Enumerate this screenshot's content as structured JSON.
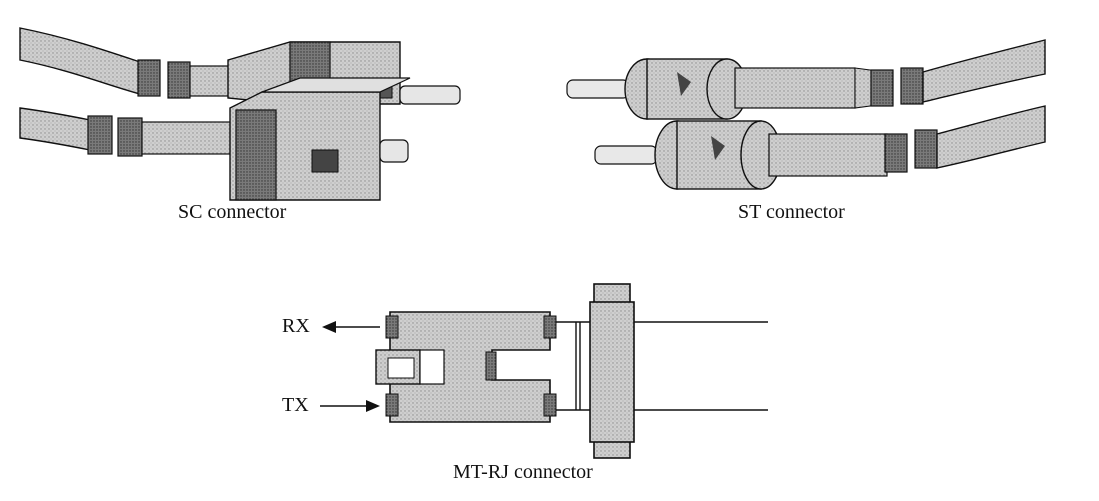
{
  "figure": {
    "panels": [
      {
        "id": "sc",
        "caption": "SC connector"
      },
      {
        "id": "st",
        "caption": "ST connector"
      },
      {
        "id": "mtrj",
        "caption": "MT-RJ connector"
      }
    ],
    "signals": {
      "rx": "RX",
      "tx": "TX"
    },
    "colors": {
      "ink": "#111111",
      "body_gray": "#b8b8b8",
      "dark_gray": "#6e6e6e",
      "light_gray": "#e2e2e2",
      "cable_gray": "#d6d6d6"
    }
  }
}
